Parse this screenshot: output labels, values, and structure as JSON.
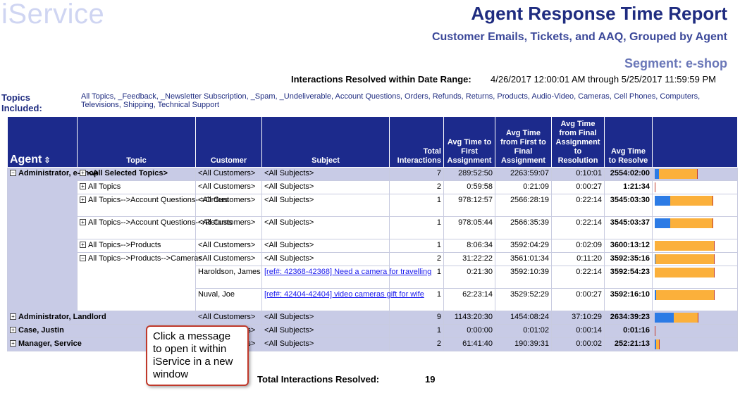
{
  "logo": {
    "text": "iService"
  },
  "header": {
    "title": "Agent Response Time Report",
    "subtitle": "Customer Emails, Tickets, and AAQ, Grouped by Agent",
    "segment": "Segment: e-shop",
    "range_label": "Interactions Resolved within Date Range:",
    "range_value": "4/26/2017 12:00:01 AM through 5/25/2017 11:59:59 PM"
  },
  "topics": {
    "label": "Topics Included:",
    "list": "All Topics, _Feedback, _Newsletter Subscription, _Spam, _Undeliverable, Account Questions, Orders, Refunds, Returns, Products, Audio-Video, Cameras, Cell Phones, Computers, Televisions, Shipping, Technical Support"
  },
  "columns": {
    "agent": "Agent",
    "topic": "Topic",
    "customer": "Customer",
    "subject": "Subject",
    "total": "Total Interactions",
    "avg_first": "Avg Time to First Assignment",
    "avg_first_final": "Avg Time from First to Final Assignment",
    "avg_final_res": "Avg Time from Final Assignment to Resolution",
    "avg_resolve": "Avg Time to Resolve"
  },
  "rows": [
    {
      "topic": "<All Selected Topics>",
      "customer": "<All Customers>",
      "subject": "<All Subjects>",
      "total": "7",
      "a1": "289:52:50",
      "a2": "2263:59:07",
      "a3": "0:10:01",
      "a4": "2554:02:00",
      "bar_first": 0.07,
      "bar_mid": 0.64,
      "bar_final": 0.0
    },
    {
      "topic": "All Topics",
      "customer": "<All Customers>",
      "subject": "<All Subjects>",
      "total": "2",
      "a1": "0:59:58",
      "a2": "0:21:09",
      "a3": "0:00:27",
      "a4": "1:21:34",
      "bar_first": 0.0,
      "bar_mid": 0.0,
      "bar_final": 0.0
    },
    {
      "topic": "All Topics-->Account Questions-->Orders",
      "customer": "<All Customers>",
      "subject": "<All Subjects>",
      "total": "1",
      "a1": "978:12:57",
      "a2": "2566:28:19",
      "a3": "0:22:14",
      "a4": "3545:03:30",
      "bar_first": 0.26,
      "bar_mid": 0.71,
      "bar_final": 0.0
    },
    {
      "topic": "All Topics-->Account Questions-->Returns",
      "customer": "<All Customers>",
      "subject": "<All Subjects>",
      "total": "1",
      "a1": "978:05:44",
      "a2": "2566:35:39",
      "a3": "0:22:14",
      "a4": "3545:03:37",
      "bar_first": 0.26,
      "bar_mid": 0.71,
      "bar_final": 0.0
    },
    {
      "topic": "All Topics-->Products",
      "customer": "<All Customers>",
      "subject": "<All Subjects>",
      "total": "1",
      "a1": "8:06:34",
      "a2": "3592:04:29",
      "a3": "0:02:09",
      "a4": "3600:13:12",
      "bar_first": 0.0,
      "bar_mid": 1.0,
      "bar_final": 0.0
    },
    {
      "topic": "All Topics-->Products-->Cameras",
      "customer": "<All Customers>",
      "subject": "<All Subjects>",
      "total": "2",
      "a1": "31:22:22",
      "a2": "3561:01:34",
      "a3": "0:11:20",
      "a4": "3592:35:16",
      "bar_first": 0.01,
      "bar_mid": 0.99,
      "bar_final": 0.0
    },
    {
      "customer": "Haroldson, James",
      "subject": "[ref#: 42368-42368] Need a camera for travelling",
      "total": "1",
      "a1": "0:21:30",
      "a2": "3592:10:39",
      "a3": "0:22:14",
      "a4": "3592:54:23",
      "bar_first": 0.0,
      "bar_mid": 1.0,
      "bar_final": 0.0
    },
    {
      "customer": "Nuval, Joe",
      "subject": "[ref#: 42404-42404] video cameras gift for wife",
      "total": "1",
      "a1": "62:23:14",
      "a2": "3529:52:29",
      "a3": "0:00:27",
      "a4": "3592:16:10",
      "bar_first": 0.02,
      "bar_mid": 0.98,
      "bar_final": 0.0
    }
  ],
  "agents": [
    {
      "name": "Administrator, e-shop"
    },
    {
      "name": "Administrator, Landlord",
      "customer": "<All Customers>",
      "subject": "<All Subjects>",
      "total": "9",
      "a1": "1143:20:30",
      "a2": "1454:08:24",
      "a3": "37:10:29",
      "a4": "2634:39:23",
      "bar_first": 0.32,
      "bar_mid": 0.4,
      "bar_final": 0.0
    },
    {
      "name": "Case, Justin",
      "customer": "<All Customers>",
      "subject": "<All Subjects>",
      "total": "1",
      "a1": "0:00:00",
      "a2": "0:01:02",
      "a3": "0:00:14",
      "a4": "0:01:16",
      "bar_first": 0.0,
      "bar_mid": 0.0,
      "bar_final": 0.0
    },
    {
      "name": "Manager, Service",
      "customer": "<All Customers>",
      "subject": "<All Subjects>",
      "total": "2",
      "a1": "61:41:40",
      "a2": "190:39:31",
      "a3": "0:00:02",
      "a4": "252:21:13",
      "bar_first": 0.02,
      "bar_mid": 0.05,
      "bar_final": 0.0
    }
  ],
  "footer": {
    "total_label": "Total Interactions Resolved:",
    "total_value": "19"
  },
  "callout": {
    "text": "Click a message to open it within iService in a new window"
  },
  "colors": {
    "header_bg": "#1c2a8c",
    "row_highlight": "#c8cbe6",
    "bar_blue": "#2c7be5",
    "bar_orange": "#fbb03b",
    "callout_border": "#c0392b"
  }
}
